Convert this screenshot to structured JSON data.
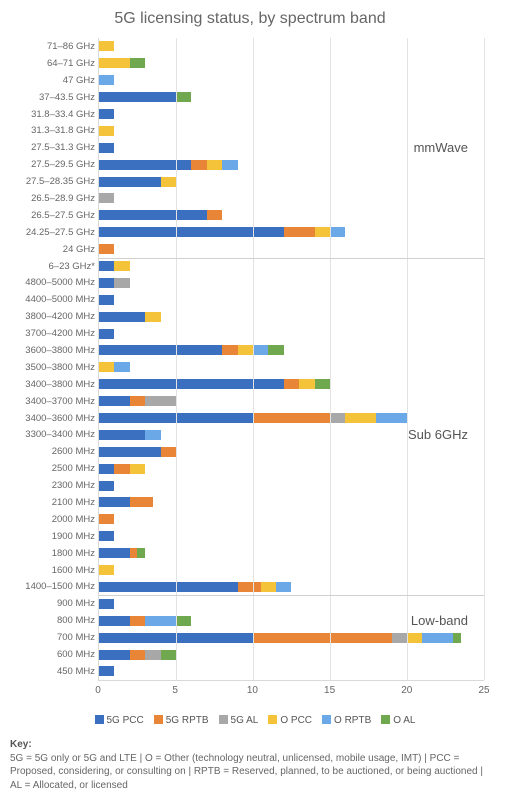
{
  "chart": {
    "type": "stacked-horizontal-bar",
    "title": "5G licensing status, by spectrum band",
    "xlim": [
      0,
      25
    ],
    "xtick_step": 5,
    "xticks": [
      0,
      5,
      10,
      15,
      20,
      25
    ],
    "background_color": "#ffffff",
    "grid_color": "#e3e3e3",
    "axis_color": "#d9d9d9",
    "title_fontsize": 16,
    "label_fontsize": 10,
    "series": [
      {
        "key": "5G PCC",
        "color": "#3b6fbf"
      },
      {
        "key": "5G RPTB",
        "color": "#e98536"
      },
      {
        "key": "5G AL",
        "color": "#a8a8a8"
      },
      {
        "key": "O PCC",
        "color": "#f4c33a"
      },
      {
        "key": "O RPTB",
        "color": "#6aa8e8"
      },
      {
        "key": "O AL",
        "color": "#6fa84e"
      }
    ],
    "groups": [
      {
        "label": "mmWave",
        "label_row_index": 6,
        "rows": [
          {
            "label": "71–86 GHz",
            "values": [
              0,
              0,
              0,
              1,
              0,
              0
            ]
          },
          {
            "label": "64–71 GHz",
            "values": [
              0,
              0,
              0,
              2,
              0,
              1
            ]
          },
          {
            "label": "47 GHz",
            "values": [
              0,
              0,
              0,
              0,
              1,
              0
            ]
          },
          {
            "label": "37–43.5 GHz",
            "values": [
              5,
              0,
              0,
              0,
              0,
              1
            ]
          },
          {
            "label": "31.8–33.4 GHz",
            "values": [
              1,
              0,
              0,
              0,
              0,
              0
            ]
          },
          {
            "label": "31.3–31.8 GHz",
            "values": [
              0,
              0,
              0,
              1,
              0,
              0
            ]
          },
          {
            "label": "27.5–31.3 GHz",
            "values": [
              1,
              0,
              0,
              0,
              0,
              0
            ]
          },
          {
            "label": "27.5–29.5 GHz",
            "values": [
              6,
              1,
              0,
              1,
              1,
              0
            ]
          },
          {
            "label": "27.5–28.35 GHz",
            "values": [
              4,
              0,
              0,
              1,
              0,
              0
            ]
          },
          {
            "label": "26.5–28.9 GHz",
            "values": [
              0,
              0,
              1,
              0,
              0,
              0
            ]
          },
          {
            "label": "26.5–27.5 GHz",
            "values": [
              7,
              1,
              0,
              0,
              0,
              0
            ]
          },
          {
            "label": "24.25–27.5 GHz",
            "values": [
              12,
              2,
              0,
              1,
              1,
              0
            ]
          },
          {
            "label": "24 GHz",
            "values": [
              0,
              1,
              0,
              0,
              0,
              0
            ]
          }
        ]
      },
      {
        "label": "Sub 6GHz",
        "label_row_index": 10,
        "rows": [
          {
            "label": "6–23 GHz*",
            "values": [
              1,
              0,
              0,
              1,
              0,
              0
            ]
          },
          {
            "label": "4800–5000 MHz",
            "values": [
              1,
              0,
              1,
              0,
              0,
              0
            ]
          },
          {
            "label": "4400–5000 MHz",
            "values": [
              1,
              0,
              0,
              0,
              0,
              0
            ]
          },
          {
            "label": "3800–4200 MHz",
            "values": [
              3,
              0,
              0,
              1,
              0,
              0
            ]
          },
          {
            "label": "3700–4200 MHz",
            "values": [
              1,
              0,
              0,
              0,
              0,
              0
            ]
          },
          {
            "label": "3600–3800 MHz",
            "values": [
              8,
              1,
              0,
              1,
              1,
              1
            ]
          },
          {
            "label": "3500–3800 MHz",
            "values": [
              0,
              0,
              0,
              1,
              1,
              0
            ]
          },
          {
            "label": "3400–3800 MHz",
            "values": [
              12,
              1,
              0,
              1,
              0,
              1
            ]
          },
          {
            "label": "3400–3700 MHz",
            "values": [
              2,
              1,
              2,
              0,
              0,
              0
            ]
          },
          {
            "label": "3400–3600 MHz",
            "values": [
              10,
              5,
              1,
              2,
              2,
              0
            ]
          },
          {
            "label": "3300–3400 MHz",
            "values": [
              3,
              0,
              0,
              0,
              1,
              0
            ]
          },
          {
            "label": "2600 MHz",
            "values": [
              4,
              1,
              0,
              0,
              0,
              0
            ]
          },
          {
            "label": "2500 MHz",
            "values": [
              1,
              1,
              0,
              1,
              0,
              0
            ]
          },
          {
            "label": "2300 MHz",
            "values": [
              1,
              0,
              0,
              0,
              0,
              0
            ]
          },
          {
            "label": "2100 MHz",
            "values": [
              2,
              1.5,
              0,
              0,
              0,
              0
            ]
          },
          {
            "label": "2000 MHz",
            "values": [
              0,
              1,
              0,
              0,
              0,
              0
            ]
          },
          {
            "label": "1900 MHz",
            "values": [
              1,
              0,
              0,
              0,
              0,
              0
            ]
          },
          {
            "label": "1800 MHz",
            "values": [
              2,
              0.5,
              0,
              0,
              0,
              0.5
            ]
          },
          {
            "label": "1600 MHz",
            "values": [
              0,
              0,
              0,
              1,
              0,
              0
            ]
          },
          {
            "label": "1400–1500 MHz",
            "values": [
              9,
              1.5,
              0,
              1,
              1,
              0
            ]
          }
        ]
      },
      {
        "label": "Low-band",
        "label_row_index": 1,
        "rows": [
          {
            "label": "900 MHz",
            "values": [
              1,
              0,
              0,
              0,
              0,
              0
            ]
          },
          {
            "label": "800 MHz",
            "values": [
              2,
              1,
              0,
              0,
              2,
              1
            ]
          },
          {
            "label": "700 MHz",
            "values": [
              10,
              9,
              1,
              1,
              2,
              0.5
            ]
          },
          {
            "label": "600 MHz",
            "values": [
              2,
              1,
              1,
              0,
              0,
              1
            ]
          },
          {
            "label": "450 MHz",
            "values": [
              1,
              0,
              0,
              0,
              0,
              0
            ]
          }
        ]
      }
    ]
  },
  "key_heading": "Key:",
  "key_text": "5G = 5G only or 5G and LTE | O = Other (technology neutral, unlicensed, mobile usage, IMT) | PCC = Proposed, considering, or consulting on | RPTB = Reserved, planned, to be auctioned, or being auctioned | AL = Allocated, or licensed"
}
